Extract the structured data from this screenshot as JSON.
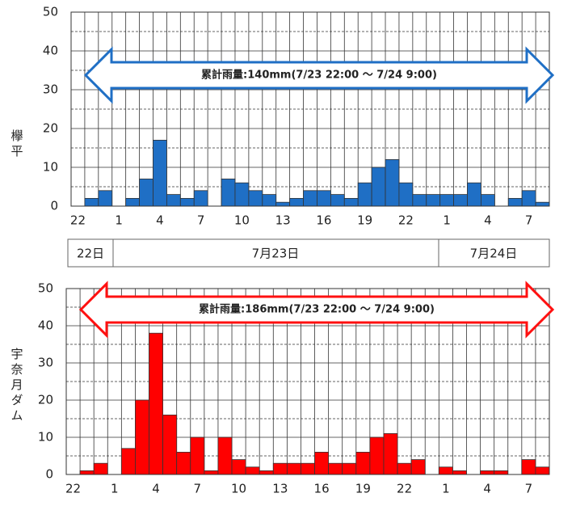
{
  "chart_data": [
    {
      "type": "bar",
      "station": "欅平",
      "annotation": "累計雨量:140mm(7/23  22:00  ～  7/24 9:00)",
      "categories": [
        "22",
        null,
        null,
        "1",
        null,
        null,
        "4",
        null,
        null,
        "7",
        null,
        null,
        "10",
        null,
        null,
        "13",
        null,
        null,
        "16",
        null,
        null,
        "19",
        null,
        null,
        "22",
        null,
        null,
        "1",
        null,
        null,
        "4",
        null,
        null,
        "7",
        null
      ],
      "values": [
        0,
        2,
        4,
        0,
        2,
        7,
        17,
        3,
        2,
        4,
        0,
        7,
        6,
        4,
        3,
        1,
        2,
        4,
        4,
        3,
        2,
        6,
        10,
        12,
        6,
        3,
        3,
        3,
        3,
        6,
        3,
        0,
        2,
        4,
        1
      ],
      "color": "#1f6fc5",
      "annotation_color": "#1f6fc5",
      "ylim": [
        0,
        50
      ],
      "yticks": [
        0,
        10,
        20,
        30,
        40,
        50
      ],
      "grid": true
    },
    {
      "type": "bar",
      "station": "宇奈月ダム",
      "annotation": "累計雨量:186mm(7/23  22:00  ～  7/24  9:00)",
      "categories": [
        "22",
        null,
        null,
        "1",
        null,
        null,
        "4",
        null,
        null,
        "7",
        null,
        null,
        "10",
        null,
        null,
        "13",
        null,
        null,
        "16",
        null,
        null,
        "19",
        null,
        null,
        "22",
        null,
        null,
        "1",
        null,
        null,
        "4",
        null,
        null,
        "7",
        null
      ],
      "values": [
        0,
        1,
        3,
        0,
        7,
        20,
        38,
        16,
        6,
        10,
        1,
        10,
        4,
        2,
        1,
        3,
        3,
        3,
        6,
        3,
        3,
        6,
        10,
        11,
        3,
        4,
        0,
        2,
        1,
        0,
        1,
        1,
        0,
        4,
        2
      ],
      "color": "#ff0000",
      "annotation_color": "#ff1010",
      "ylim": [
        0,
        50
      ],
      "yticks": [
        0,
        10,
        20,
        30,
        40,
        50
      ],
      "grid": true
    }
  ],
  "date_band": [
    "22日",
    "7月23日",
    "7月24日"
  ]
}
